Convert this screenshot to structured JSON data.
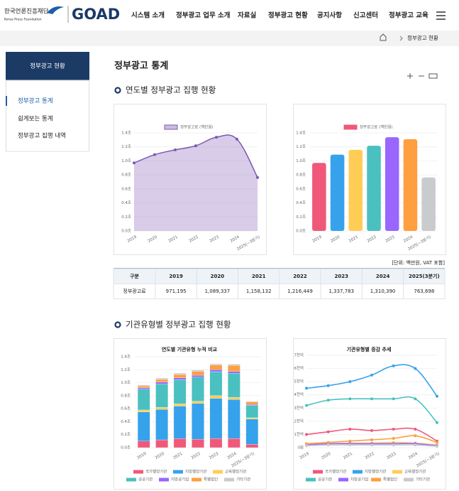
{
  "header": {
    "org_name": "한국언론진흥재단",
    "org_name_en": "Korea Press Foundation",
    "brand": "GOAD",
    "nav": [
      "시스템 소개",
      "정부광고 업무 소개",
      "자료실",
      "정부광고 현황",
      "공지사항",
      "신고센터",
      "정부광고 교육"
    ]
  },
  "breadcrumb": {
    "current": "정부광고 현황"
  },
  "sidebar": {
    "title": "정부광고 현황",
    "items": [
      "정부광고 통계",
      "쉽게보는 통계",
      "정부광고 집행 내역"
    ]
  },
  "page_title": "정부광고 통계",
  "sections": [
    {
      "title": "연도별 정부광고 집행 현황"
    },
    {
      "title": "기관유형별 정부광고 집행 현황"
    }
  ],
  "unit_note": "[단위: 백만원, VAT 포함]",
  "table": {
    "header": [
      "구분",
      "2019",
      "2020",
      "2021",
      "2022",
      "2023",
      "2024",
      "2025(3분기)"
    ],
    "rows": [
      [
        "정부광고료",
        "971,195",
        "1,089,337",
        "1,158,132",
        "1,216,449",
        "1,337,783",
        "1,310,390",
        "763,698"
      ]
    ]
  },
  "chart_data": [
    {
      "type": "line",
      "fill": true,
      "categories": [
        "2019",
        "2020",
        "2021",
        "2022",
        "2023",
        "2024",
        "2025(~3분기)"
      ],
      "series": [
        {
          "name": "정부광고료 (백만원)",
          "color": "#7e57b2",
          "values": [
            0.971,
            1.089,
            1.158,
            1.216,
            1.338,
            1.31,
            0.764
          ]
        }
      ],
      "ylim": [
        0,
        1.4
      ],
      "yticks": [
        {
          "value": 0,
          "label": "0.0조"
        },
        {
          "value": 0.2,
          "label": "0.2조"
        },
        {
          "value": 0.4,
          "label": "0.4조"
        },
        {
          "value": 0.6,
          "label": "0.6조"
        },
        {
          "value": 0.8,
          "label": "0.8조"
        },
        {
          "value": 1.0,
          "label": "1.0조"
        },
        {
          "value": 1.2,
          "label": "1.2조"
        },
        {
          "value": 1.4,
          "label": "1.4조"
        }
      ],
      "grid": true
    },
    {
      "type": "bar",
      "categories": [
        "2019",
        "2020",
        "2021",
        "2022",
        "2023",
        "2024",
        "2025(~3분기)"
      ],
      "series": [
        {
          "name": "정부광고료 (백만원)",
          "color": "#f0587a",
          "values": [
            0.971,
            1.089,
            1.158,
            1.216,
            1.338,
            1.31,
            0.764
          ]
        }
      ],
      "bar_colors": [
        "#f0587a",
        "#36a2eb",
        "#ffcd56",
        "#4bc0c0",
        "#9966ff",
        "#ff9f40",
        "#c9cbcf"
      ],
      "ylim": [
        0,
        1.4
      ],
      "yticks": [
        {
          "value": 0,
          "label": "0.0조"
        },
        {
          "value": 0.2,
          "label": "0.2조"
        },
        {
          "value": 0.4,
          "label": "0.4조"
        },
        {
          "value": 0.6,
          "label": "0.6조"
        },
        {
          "value": 0.8,
          "label": "0.8조"
        },
        {
          "value": 1.0,
          "label": "1.0조"
        },
        {
          "value": 1.2,
          "label": "1.2조"
        },
        {
          "value": 1.4,
          "label": "1.4조"
        }
      ],
      "grid": true
    },
    {
      "type": "stacked_bar",
      "title": "연도별 기관유형 누적 비교",
      "categories": [
        "2019",
        "2020",
        "2021",
        "2022",
        "2023",
        "2024",
        "2025(~3분기)"
      ],
      "series": [
        {
          "name": "국가행정기관",
          "color": "#f0587a",
          "values": [
            0.1,
            0.12,
            0.14,
            0.13,
            0.14,
            0.14,
            0.05
          ]
        },
        {
          "name": "지방행정기관",
          "color": "#36a2eb",
          "values": [
            0.45,
            0.47,
            0.5,
            0.55,
            0.62,
            0.6,
            0.39
          ]
        },
        {
          "name": "교육행정기관",
          "color": "#ffcd56",
          "values": [
            0.03,
            0.03,
            0.035,
            0.035,
            0.04,
            0.035,
            0.02
          ]
        },
        {
          "name": "공공기관",
          "color": "#4bc0c0",
          "values": [
            0.32,
            0.36,
            0.37,
            0.37,
            0.37,
            0.37,
            0.19
          ]
        },
        {
          "name": "지방공기업",
          "color": "#9966ff",
          "values": [
            0.02,
            0.03,
            0.03,
            0.03,
            0.03,
            0.03,
            0.015
          ]
        },
        {
          "name": "특별법인",
          "color": "#ff9f40",
          "values": [
            0.03,
            0.04,
            0.05,
            0.06,
            0.07,
            0.09,
            0.04
          ]
        },
        {
          "name": "기타기관",
          "color": "#c9cbcf",
          "values": [
            0.015,
            0.02,
            0.02,
            0.02,
            0.02,
            0.02,
            0.01
          ]
        }
      ],
      "ylim": [
        0,
        1.4
      ],
      "yticks": [
        {
          "value": 0,
          "label": "0.0조"
        },
        {
          "value": 0.2,
          "label": "0.2조"
        },
        {
          "value": 0.4,
          "label": "0.4조"
        },
        {
          "value": 0.6,
          "label": "0.6조"
        },
        {
          "value": 0.8,
          "label": "0.8조"
        },
        {
          "value": 1.0,
          "label": "1.0조"
        },
        {
          "value": 1.2,
          "label": "1.2조"
        },
        {
          "value": 1.4,
          "label": "1.4조"
        }
      ],
      "grid": true
    },
    {
      "type": "line",
      "fill": false,
      "title": "기관유형별 증감 추세",
      "categories": [
        "2019",
        "2020",
        "2021",
        "2022",
        "2023",
        "2024",
        "2025(~3분기)"
      ],
      "series": [
        {
          "name": "국가행정기관",
          "color": "#f0587a",
          "values": [
            1.0,
            1.2,
            1.4,
            1.3,
            1.4,
            1.4,
            0.5
          ]
        },
        {
          "name": "지방행정기관",
          "color": "#36a2eb",
          "values": [
            4.5,
            4.7,
            5.0,
            5.5,
            6.2,
            6.0,
            3.9
          ]
        },
        {
          "name": "교육행정기관",
          "color": "#ffcd56",
          "values": [
            0.3,
            0.3,
            0.35,
            0.35,
            0.4,
            0.35,
            0.2
          ]
        },
        {
          "name": "공공기관",
          "color": "#4bc0c0",
          "values": [
            3.2,
            3.6,
            3.7,
            3.7,
            3.7,
            3.7,
            1.9
          ]
        },
        {
          "name": "지방공기업",
          "color": "#9966ff",
          "values": [
            0.2,
            0.3,
            0.3,
            0.3,
            0.3,
            0.3,
            0.15
          ]
        },
        {
          "name": "특별법인",
          "color": "#ff9f40",
          "values": [
            0.3,
            0.4,
            0.5,
            0.6,
            0.7,
            0.9,
            0.4
          ]
        },
        {
          "name": "기타기관",
          "color": "#c9cbcf",
          "values": [
            0.15,
            0.2,
            0.2,
            0.2,
            0.2,
            0.2,
            0.1
          ]
        }
      ],
      "ylim": [
        0,
        7
      ],
      "yticks": [
        {
          "value": 0,
          "label": "0원"
        },
        {
          "value": 1,
          "label": "1천억"
        },
        {
          "value": 2,
          "label": "2천억"
        },
        {
          "value": 3,
          "label": "3천억"
        },
        {
          "value": 4,
          "label": "4천억"
        },
        {
          "value": 5,
          "label": "5천억"
        },
        {
          "value": 6,
          "label": "6천억"
        },
        {
          "value": 7,
          "label": "7천억"
        }
      ],
      "grid": true
    }
  ]
}
